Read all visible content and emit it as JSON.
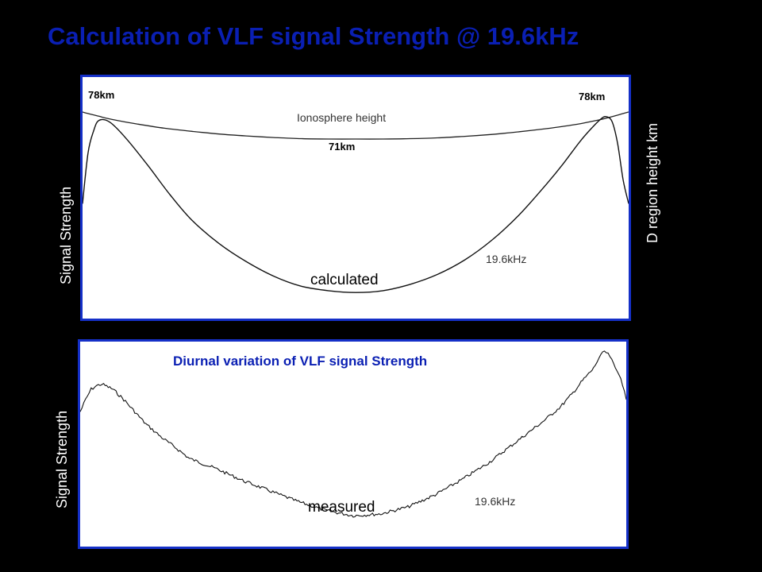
{
  "title": "Calculation of VLF signal Strength @ 19.6kHz",
  "colors": {
    "title": "#0a1fb3",
    "panel_border": "#1530c8",
    "background": "#000000",
    "curve": "#111111"
  },
  "chart_data": [
    {
      "type": "line",
      "title": "",
      "ylabel": "Signal Strength",
      "y2label": "D region height km",
      "annotations": {
        "ionosphere_label": "Ionosphere height",
        "height_left": "78km",
        "height_right": "78km",
        "height_min": "71km",
        "frequency": "19.6kHz",
        "caption": "calculated"
      },
      "series": [
        {
          "x": [
            0,
            0.01,
            0.03,
            0.05,
            0.1,
            0.15,
            0.2,
            0.25,
            0.3,
            0.35,
            0.4,
            0.45,
            0.5,
            0.55,
            0.6,
            0.65,
            0.7,
            0.75,
            0.8,
            0.85,
            0.9,
            0.93,
            0.95,
            0.97,
            0.98,
            0.99,
            1.0
          ],
          "values": [
            78,
            77.6,
            76.9,
            76.2,
            74.9,
            73.8,
            73.0,
            72.3,
            71.8,
            71.4,
            71.1,
            71.0,
            71.0,
            71.0,
            71.1,
            71.3,
            71.7,
            72.2,
            72.9,
            73.7,
            74.7,
            75.5,
            76.1,
            76.8,
            77.2,
            77.6,
            78
          ]
        },
        {
          "name": "19.6kHz",
          "x": [
            0,
            0.01,
            0.02,
            0.03,
            0.05,
            0.08,
            0.12,
            0.16,
            0.2,
            0.25,
            0.3,
            0.35,
            0.4,
            0.45,
            0.5,
            0.55,
            0.6,
            0.65,
            0.7,
            0.75,
            0.8,
            0.85,
            0.88,
            0.91,
            0.93,
            0.95,
            0.96,
            0.97,
            0.98,
            0.99,
            1.0
          ],
          "values": [
            0.52,
            0.8,
            0.92,
            0.98,
            0.97,
            0.88,
            0.73,
            0.57,
            0.43,
            0.3,
            0.2,
            0.12,
            0.065,
            0.04,
            0.03,
            0.04,
            0.075,
            0.13,
            0.21,
            0.32,
            0.46,
            0.63,
            0.74,
            0.86,
            0.93,
            0.99,
            1.0,
            0.97,
            0.85,
            0.65,
            0.52
          ]
        }
      ]
    },
    {
      "type": "line",
      "title": "Diurnal variation of VLF signal Strength",
      "ylabel": "Signal Strength",
      "annotations": {
        "frequency": "19.6kHz",
        "caption": "measured"
      },
      "series": [
        {
          "name": "19.6kHz",
          "x": [
            0,
            0.01,
            0.02,
            0.03,
            0.04,
            0.06,
            0.08,
            0.1,
            0.12,
            0.15,
            0.18,
            0.2,
            0.25,
            0.3,
            0.35,
            0.4,
            0.45,
            0.5,
            0.55,
            0.6,
            0.65,
            0.7,
            0.75,
            0.8,
            0.85,
            0.88,
            0.9,
            0.92,
            0.94,
            0.95,
            0.96,
            0.97,
            0.98,
            0.99,
            1.0
          ],
          "values": [
            0.65,
            0.72,
            0.78,
            0.8,
            0.81,
            0.78,
            0.72,
            0.65,
            0.58,
            0.5,
            0.43,
            0.38,
            0.32,
            0.25,
            0.19,
            0.13,
            0.08,
            0.05,
            0.06,
            0.1,
            0.17,
            0.26,
            0.36,
            0.48,
            0.6,
            0.68,
            0.75,
            0.83,
            0.9,
            0.96,
            1.0,
            0.97,
            0.9,
            0.85,
            0.72
          ]
        }
      ]
    }
  ]
}
